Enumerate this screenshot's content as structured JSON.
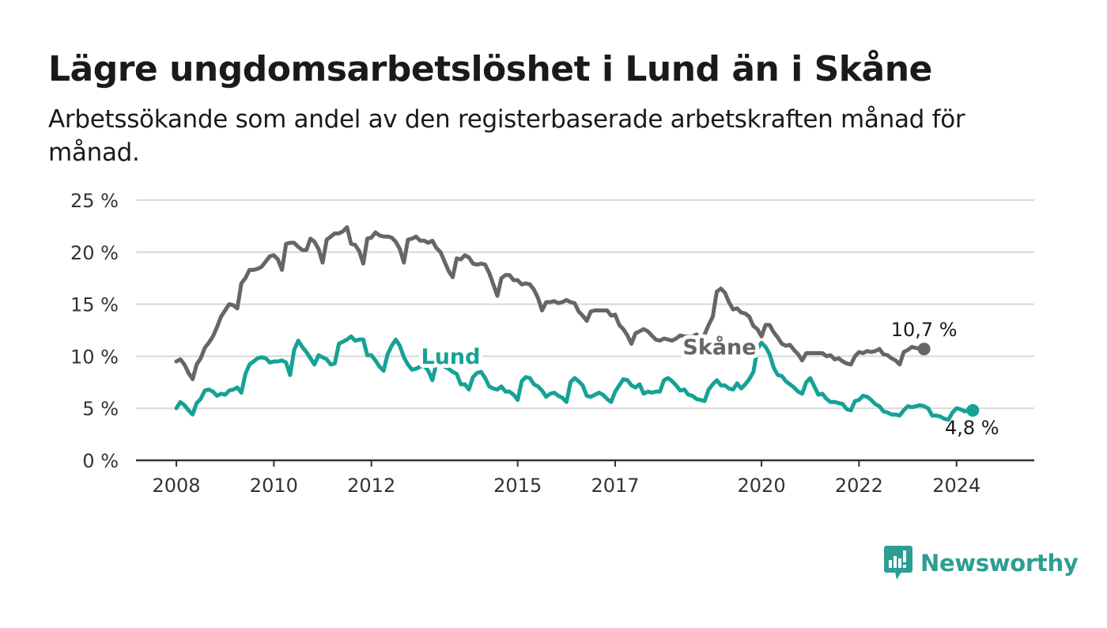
{
  "title": "Lägre ungdomsarbetslöshet i Lund än i Skåne",
  "subtitle": "Arbetssökande som andel av den registerbaserade arbetskraften månad för månad.",
  "logo": {
    "text": "Newsworthy",
    "icon": "bar-chart-speech-bubble-icon",
    "color": "#2c9e94"
  },
  "chart_data": {
    "type": "line",
    "title": "Lägre ungdomsarbetslöshet i Lund än i Skåne",
    "xlabel": "",
    "ylabel": "",
    "ylim": [
      0,
      25
    ],
    "y_ticks": [
      0,
      5,
      10,
      15,
      20,
      25
    ],
    "y_tick_labels": [
      "0 %",
      "5 %",
      "10 %",
      "15 %",
      "20 %",
      "25 %"
    ],
    "x_tick_labels": [
      "2008",
      "2010",
      "2012",
      "2015",
      "2017",
      "2020",
      "2022",
      "2024"
    ],
    "x_tick_values": [
      2008,
      2010,
      2012,
      2015,
      2017,
      2020,
      2022,
      2024
    ],
    "x_range": [
      2008,
      2024.75
    ],
    "grid": true,
    "x_start": 2008,
    "x_step_months": 1,
    "series": [
      {
        "name": "Skåne",
        "color": "#666666",
        "end_label": "10,7 %",
        "values": [
          9.5,
          9.7,
          9.2,
          8.4,
          7.8,
          9.2,
          9.8,
          10.8,
          11.3,
          11.9,
          12.8,
          13.8,
          14.4,
          15.0,
          14.9,
          14.6,
          17.0,
          17.5,
          18.3,
          18.3,
          18.4,
          18.6,
          19.1,
          19.6,
          19.7,
          19.3,
          18.3,
          20.8,
          20.9,
          20.9,
          20.5,
          20.2,
          20.2,
          21.3,
          21.0,
          20.3,
          19.0,
          21.2,
          21.5,
          21.8,
          21.8,
          22.0,
          22.4,
          20.8,
          20.7,
          20.1,
          18.9,
          21.3,
          21.4,
          21.9,
          21.6,
          21.5,
          21.5,
          21.4,
          21.0,
          20.3,
          19.0,
          21.2,
          21.3,
          21.5,
          21.1,
          21.1,
          20.9,
          21.1,
          20.4,
          20.0,
          19.1,
          18.2,
          17.6,
          19.4,
          19.3,
          19.7,
          19.5,
          18.9,
          18.8,
          18.9,
          18.8,
          18.0,
          16.9,
          15.8,
          17.5,
          17.8,
          17.8,
          17.3,
          17.3,
          16.9,
          17.0,
          16.9,
          16.4,
          15.6,
          14.4,
          15.2,
          15.2,
          15.3,
          15.1,
          15.2,
          15.4,
          15.2,
          15.1,
          14.3,
          13.9,
          13.4,
          14.3,
          14.4,
          14.4,
          14.4,
          14.4,
          13.9,
          14.0,
          13.0,
          12.6,
          12.0,
          11.2,
          12.2,
          12.4,
          12.6,
          12.4,
          12.0,
          11.6,
          11.5,
          11.7,
          11.6,
          11.5,
          11.7,
          12.0,
          11.9,
          11.9,
          11.9,
          12.1,
          11.8,
          12.1,
          13.0,
          13.8,
          16.2,
          16.5,
          16.1,
          15.2,
          14.5,
          14.6,
          14.2,
          14.1,
          13.8,
          12.9,
          12.6,
          11.9,
          13.0,
          13.0,
          12.3,
          11.8,
          11.2,
          11.0,
          11.1,
          10.6,
          10.2,
          9.6,
          10.3,
          10.3,
          10.3,
          10.3,
          10.3,
          10.0,
          10.1,
          9.7,
          9.8,
          9.5,
          9.3,
          9.2,
          10.0,
          10.4,
          10.3,
          10.5,
          10.4,
          10.5,
          10.7,
          10.2,
          10.1,
          9.8,
          9.6,
          9.2,
          10.4,
          10.6,
          10.9,
          10.8,
          10.7,
          10.7
        ]
      },
      {
        "name": "Lund",
        "color": "#15a295",
        "end_label": "4,8 %",
        "values": [
          5.0,
          5.6,
          5.3,
          4.8,
          4.4,
          5.5,
          5.9,
          6.7,
          6.8,
          6.6,
          6.2,
          6.4,
          6.3,
          6.7,
          6.8,
          7.0,
          6.5,
          8.3,
          9.2,
          9.5,
          9.8,
          9.9,
          9.8,
          9.4,
          9.5,
          9.5,
          9.6,
          9.4,
          8.2,
          10.6,
          11.5,
          10.9,
          10.4,
          9.8,
          9.2,
          10.1,
          9.9,
          9.7,
          9.2,
          9.3,
          11.2,
          11.4,
          11.6,
          11.9,
          11.5,
          11.6,
          11.6,
          10.1,
          10.1,
          9.6,
          9.0,
          8.6,
          10.2,
          11.0,
          11.6,
          11.0,
          9.9,
          9.2,
          8.7,
          8.8,
          9.0,
          9.1,
          8.6,
          7.7,
          9.3,
          9.3,
          9.0,
          8.8,
          8.5,
          8.3,
          7.3,
          7.3,
          6.8,
          8.0,
          8.4,
          8.5,
          7.9,
          7.1,
          6.9,
          6.8,
          7.1,
          6.6,
          6.6,
          6.3,
          5.8,
          7.6,
          8.0,
          7.9,
          7.3,
          7.1,
          6.7,
          6.1,
          6.4,
          6.5,
          6.2,
          6.0,
          5.6,
          7.5,
          7.9,
          7.6,
          7.2,
          6.2,
          6.1,
          6.3,
          6.5,
          6.3,
          5.9,
          5.6,
          6.6,
          7.2,
          7.8,
          7.7,
          7.2,
          7.0,
          7.3,
          6.4,
          6.6,
          6.5,
          6.6,
          6.6,
          7.7,
          7.9,
          7.6,
          7.2,
          6.7,
          6.8,
          6.3,
          6.2,
          5.9,
          5.8,
          5.7,
          6.8,
          7.3,
          7.7,
          7.2,
          7.2,
          6.9,
          6.8,
          7.4,
          6.9,
          7.3,
          7.8,
          8.5,
          10.7,
          11.3,
          10.9,
          10.2,
          8.9,
          8.2,
          8.1,
          7.6,
          7.3,
          7.0,
          6.6,
          6.4,
          7.5,
          7.9,
          7.1,
          6.3,
          6.4,
          5.9,
          5.6,
          5.6,
          5.5,
          5.4,
          4.9,
          4.8,
          5.7,
          5.8,
          6.2,
          6.1,
          5.8,
          5.4,
          5.2,
          4.7,
          4.6,
          4.4,
          4.4,
          4.3,
          4.8,
          5.2,
          5.1,
          5.2,
          5.3,
          5.2,
          5.0,
          4.3,
          4.3,
          4.2,
          4.0,
          3.9,
          4.6,
          5.0,
          4.9,
          4.7,
          4.8,
          4.8
        ]
      }
    ],
    "annotations": [
      {
        "text": "Lund",
        "series": "Lund"
      },
      {
        "text": "Skåne",
        "series": "Skåne"
      },
      {
        "text": "10,7 %",
        "series": "Skåne"
      },
      {
        "text": "4,8 %",
        "series": "Lund"
      }
    ]
  }
}
